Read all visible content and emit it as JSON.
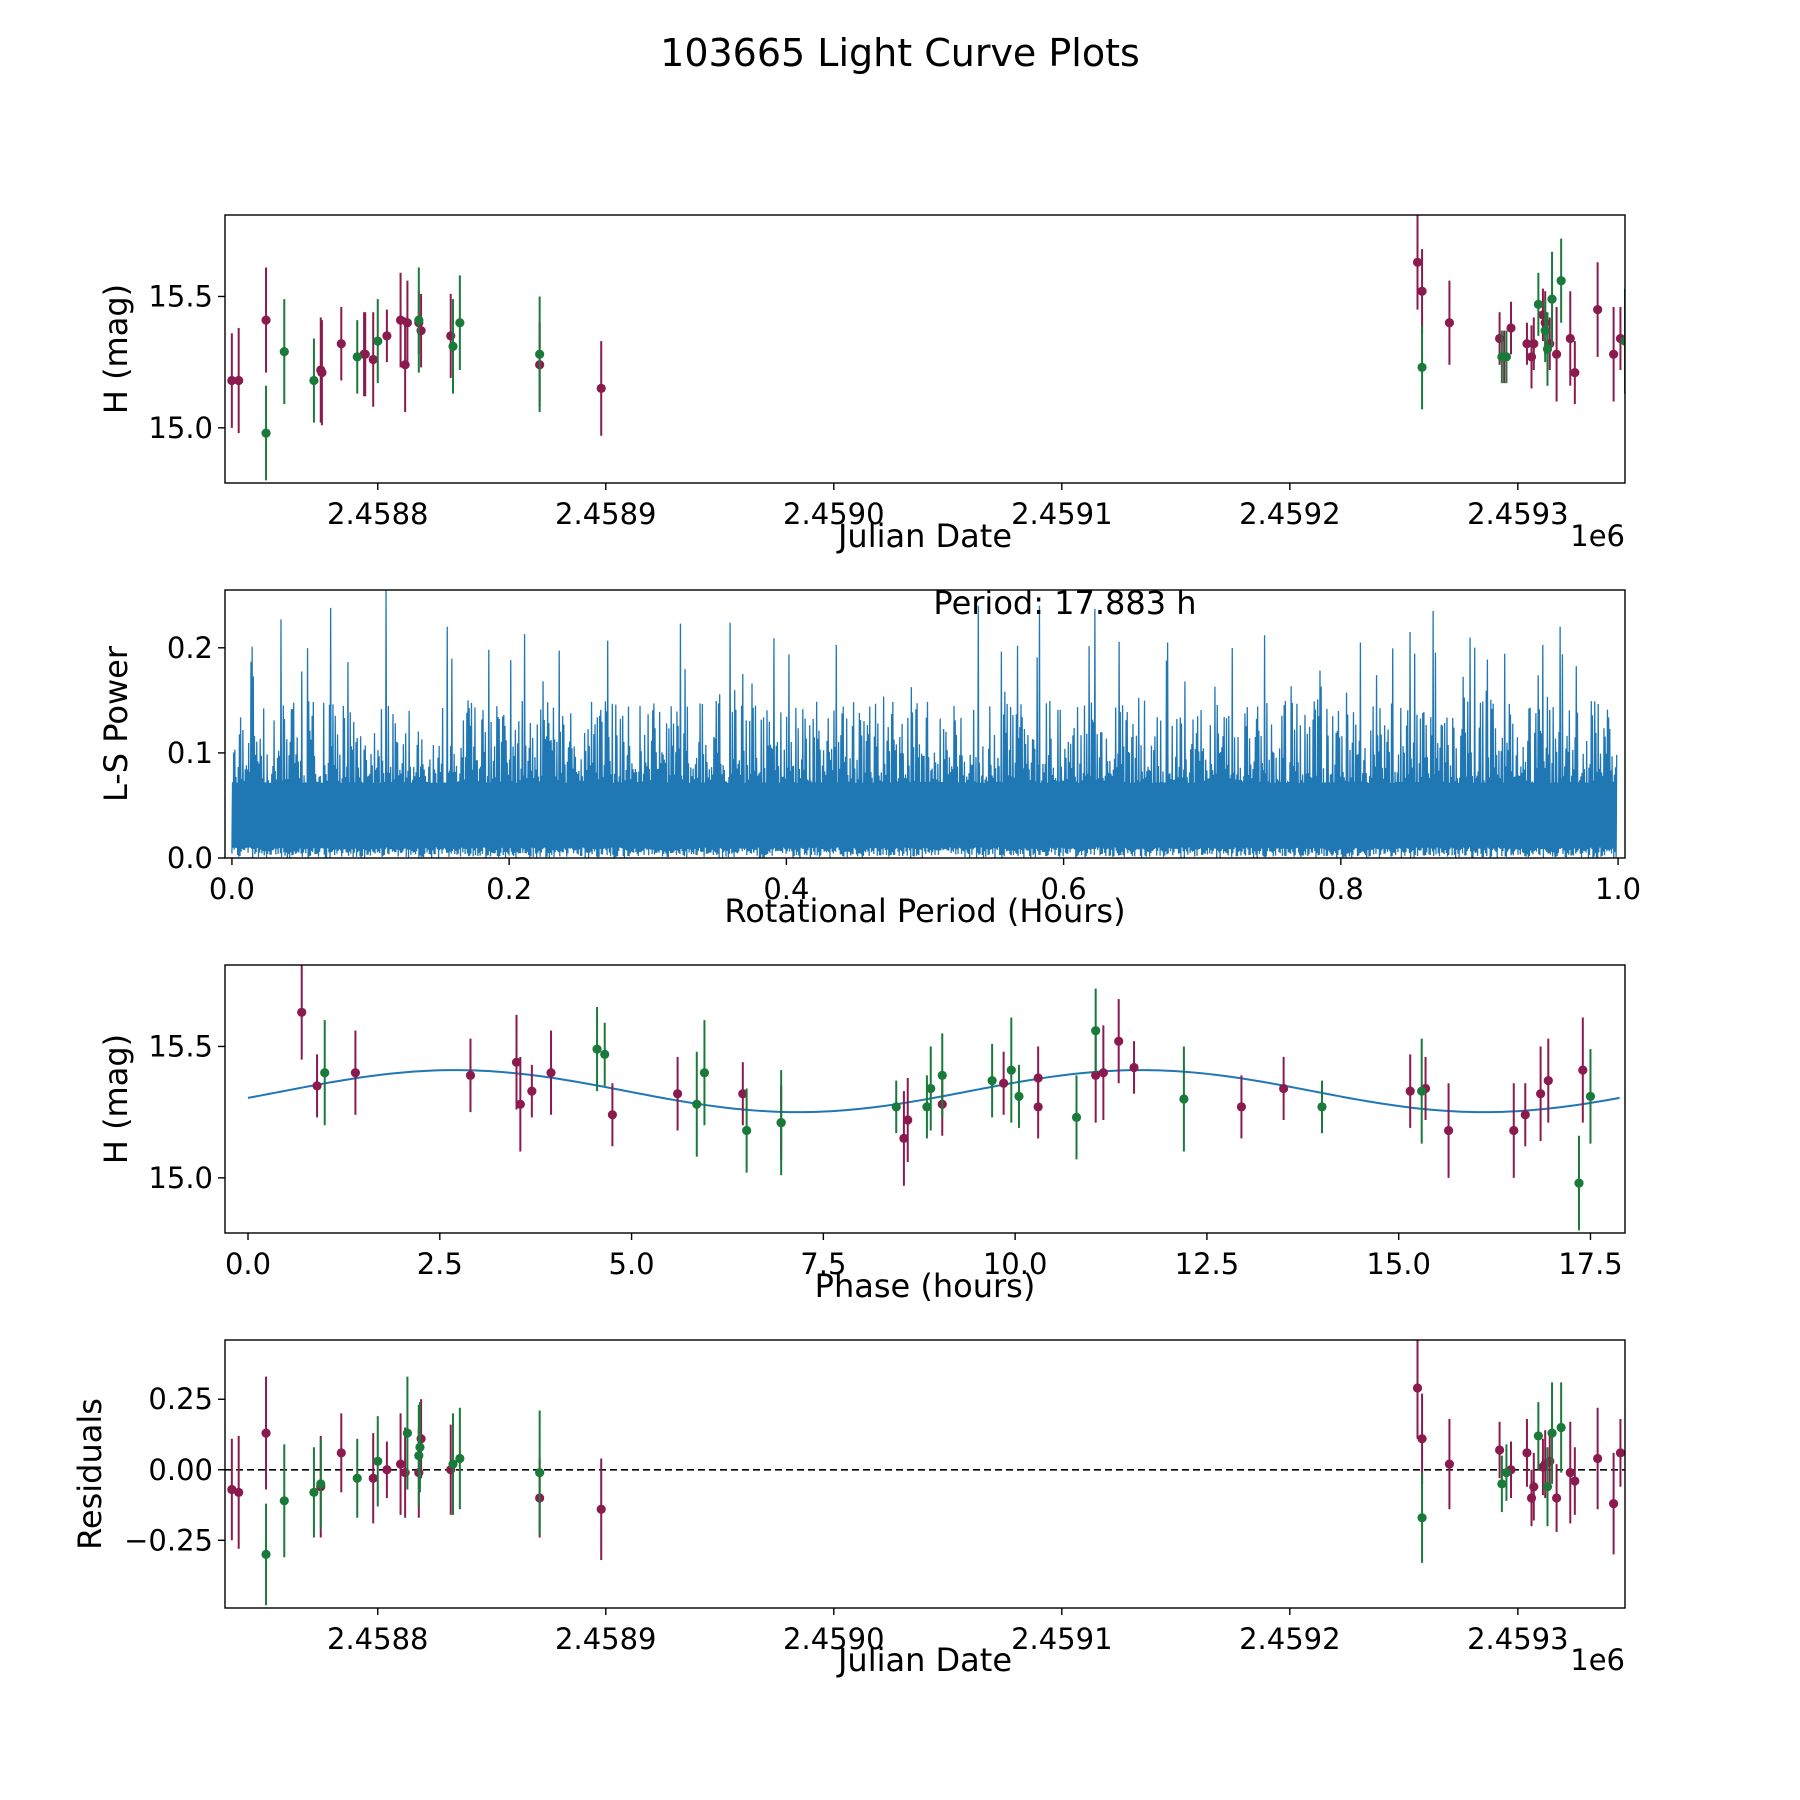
{
  "title": "103665 Light Curve Plots",
  "colors": {
    "red": "#8b1a4f",
    "green": "#1a7a3a",
    "line": "#1f77b4",
    "axis": "#000000"
  },
  "chart_data": [
    {
      "type": "scatter",
      "name": "lightcurve",
      "xlabel": "Julian Date",
      "ylabel": "H (mag)",
      "offset_label": "1e6",
      "xlim": [
        2458733,
        2459347
      ],
      "ylim": [
        14.79,
        15.81
      ],
      "xticks": [
        2458800,
        2458900,
        2459000,
        2459100,
        2459200,
        2459300
      ],
      "xtick_labels": [
        "2.4588",
        "2.4589",
        "2.4590",
        "2.4591",
        "2.4592",
        "2.4593"
      ],
      "yticks": [
        15.0,
        15.5
      ],
      "ytick_labels": [
        "15.0",
        "15.5"
      ],
      "series": [
        {
          "name": "red",
          "color": "red",
          "points": [
            [
              2458736,
              15.18,
              0.18
            ],
            [
              2458739,
              15.18,
              0.2
            ],
            [
              2458751,
              15.41,
              0.2
            ],
            [
              2458775,
              15.22,
              0.2
            ],
            [
              2458775.5,
              15.21,
              0.2
            ],
            [
              2458784,
              15.32,
              0.14
            ],
            [
              2458794,
              15.28,
              0.16
            ],
            [
              2458798,
              15.26,
              0.18
            ],
            [
              2458794.5,
              15.28,
              0.16
            ],
            [
              2458804,
              15.35,
              0.1
            ],
            [
              2458810,
              15.41,
              0.18
            ],
            [
              2458812,
              15.24,
              0.18
            ],
            [
              2458813,
              15.4,
              0.16
            ],
            [
              2458818,
              15.4,
              0.12
            ],
            [
              2458819,
              15.37,
              0.14
            ],
            [
              2458832,
              15.35,
              0.16
            ],
            [
              2458871,
              15.24,
              0.16
            ],
            [
              2458898,
              15.15,
              0.18
            ],
            [
              2459256,
              15.63,
              0.18
            ],
            [
              2459258,
              15.52,
              0.16
            ],
            [
              2459270,
              15.4,
              0.16
            ],
            [
              2459292,
              15.34,
              0.1
            ],
            [
              2459294,
              15.27,
              0.1
            ],
            [
              2459297,
              15.38,
              0.1
            ],
            [
              2459304,
              15.32,
              0.08
            ],
            [
              2459306,
              15.27,
              0.12
            ],
            [
              2459307,
              15.32,
              0.1
            ],
            [
              2459311,
              15.43,
              0.1
            ],
            [
              2459312,
              15.4,
              0.12
            ],
            [
              2459314,
              15.32,
              0.1
            ],
            [
              2459317,
              15.28,
              0.18
            ],
            [
              2459323,
              15.34,
              0.18
            ],
            [
              2459325,
              15.21,
              0.12
            ],
            [
              2459335,
              15.45,
              0.18
            ],
            [
              2459342,
              15.28,
              0.18
            ],
            [
              2459345,
              15.34,
              0.12
            ]
          ]
        },
        {
          "name": "green",
          "color": "green",
          "points": [
            [
              2458751,
              14.98,
              0.18
            ],
            [
              2458759,
              15.29,
              0.2
            ],
            [
              2458772,
              15.18,
              0.16
            ],
            [
              2458791,
              15.27,
              0.14
            ],
            [
              2458800,
              15.33,
              0.16
            ],
            [
              2458818,
              15.41,
              0.2
            ],
            [
              2458833,
              15.31,
              0.18
            ],
            [
              2458836,
              15.4,
              0.18
            ],
            [
              2458871,
              15.28,
              0.22
            ],
            [
              2459258,
              15.23,
              0.16
            ],
            [
              2459293,
              15.27,
              0.1
            ],
            [
              2459295,
              15.27,
              0.1
            ],
            [
              2459309,
              15.47,
              0.12
            ],
            [
              2459312,
              15.37,
              0.12
            ],
            [
              2459313,
              15.3,
              0.14
            ],
            [
              2459315,
              15.49,
              0.18
            ],
            [
              2459319,
              15.56,
              0.16
            ],
            [
              2459347,
              15.33,
              0.2
            ]
          ]
        }
      ]
    },
    {
      "type": "line",
      "name": "periodogram",
      "xlabel": "Rotational Period (Hours)",
      "ylabel": "L-S Power",
      "annotation": "Period: 17.883 h",
      "xlim": [
        -0.005,
        1.005
      ],
      "ylim": [
        0,
        0.255
      ],
      "xticks": [
        0.0,
        0.2,
        0.4,
        0.6,
        0.8,
        1.0
      ],
      "xtick_labels": [
        "0.0",
        "0.2",
        "0.4",
        "0.6",
        "0.8",
        "1.0"
      ],
      "yticks": [
        0.0,
        0.1,
        0.2
      ],
      "ytick_labels": [
        "0.0",
        "0.1",
        "0.2"
      ],
      "x_range": [
        0.0,
        0.999
      ],
      "n_samples": 2400,
      "typical_power": 0.13,
      "max_power": 0.255,
      "noise_seed": 103665,
      "peaks": [
        [
          0.035,
          0.227
        ],
        [
          0.071,
          0.238
        ],
        [
          0.111,
          0.255
        ],
        [
          0.155,
          0.22
        ],
        [
          0.211,
          0.213
        ],
        [
          0.323,
          0.223
        ],
        [
          0.359,
          0.224
        ],
        [
          0.538,
          0.24
        ],
        [
          0.582,
          0.24
        ],
        [
          0.622,
          0.237
        ],
        [
          0.675,
          0.205
        ],
        [
          0.745,
          0.212
        ],
        [
          0.85,
          0.215
        ],
        [
          0.866,
          0.235
        ],
        [
          0.958,
          0.22
        ]
      ]
    },
    {
      "type": "scatter",
      "name": "phased",
      "xlabel": "Phase (hours)",
      "ylabel": "H (mag)",
      "xlim": [
        -0.3,
        17.95
      ],
      "ylim": [
        14.79,
        15.81
      ],
      "xticks": [
        0.0,
        2.5,
        5.0,
        7.5,
        10.0,
        12.5,
        15.0,
        17.5
      ],
      "xtick_labels": [
        "0.0",
        "2.5",
        "5.0",
        "7.5",
        "10.0",
        "12.5",
        "15.0",
        "17.5"
      ],
      "yticks": [
        15.0,
        15.5
      ],
      "ytick_labels": [
        "15.0",
        "15.5"
      ],
      "model": {
        "mean": 15.33,
        "amplitude": 0.08,
        "period_hours": 17.883,
        "phase_of_max_hours": 2.7,
        "x_range": [
          0.0,
          17.88
        ]
      },
      "series": [
        {
          "name": "red",
          "color": "red",
          "points": [
            [
              0.7,
              15.63,
              0.18
            ],
            [
              0.9,
              15.35,
              0.12
            ],
            [
              1.4,
              15.4,
              0.16
            ],
            [
              2.9,
              15.39,
              0.14
            ],
            [
              3.5,
              15.44,
              0.18
            ],
            [
              3.55,
              15.28,
              0.18
            ],
            [
              3.7,
              15.33,
              0.1
            ],
            [
              3.95,
              15.4,
              0.16
            ],
            [
              4.75,
              15.24,
              0.12
            ],
            [
              5.6,
              15.32,
              0.14
            ],
            [
              6.45,
              15.32,
              0.12
            ],
            [
              6.95,
              15.21,
              0.14
            ],
            [
              8.55,
              15.15,
              0.18
            ],
            [
              8.6,
              15.22,
              0.16
            ],
            [
              9.05,
              15.28,
              0.12
            ],
            [
              9.85,
              15.36,
              0.12
            ],
            [
              10.3,
              15.27,
              0.12
            ],
            [
              10.3,
              15.38,
              0.12
            ],
            [
              11.05,
              15.39,
              0.18
            ],
            [
              11.15,
              15.4,
              0.18
            ],
            [
              11.35,
              15.52,
              0.16
            ],
            [
              11.55,
              15.42,
              0.1
            ],
            [
              12.95,
              15.27,
              0.12
            ],
            [
              13.5,
              15.34,
              0.12
            ],
            [
              15.15,
              15.33,
              0.14
            ],
            [
              15.35,
              15.34,
              0.12
            ],
            [
              15.65,
              15.18,
              0.18
            ],
            [
              16.5,
              15.18,
              0.18
            ],
            [
              16.65,
              15.24,
              0.12
            ],
            [
              16.85,
              15.32,
              0.18
            ],
            [
              16.95,
              15.37,
              0.16
            ],
            [
              17.4,
              15.41,
              0.2
            ]
          ]
        },
        {
          "name": "green",
          "color": "green",
          "points": [
            [
              1.0,
              15.4,
              0.2
            ],
            [
              4.55,
              15.49,
              0.16
            ],
            [
              4.65,
              15.47,
              0.12
            ],
            [
              5.85,
              15.28,
              0.2
            ],
            [
              5.95,
              15.4,
              0.2
            ],
            [
              6.5,
              15.18,
              0.16
            ],
            [
              6.95,
              15.21,
              0.2
            ],
            [
              8.45,
              15.27,
              0.1
            ],
            [
              8.85,
              15.27,
              0.12
            ],
            [
              8.9,
              15.34,
              0.16
            ],
            [
              9.05,
              15.39,
              0.16
            ],
            [
              9.7,
              15.37,
              0.14
            ],
            [
              9.95,
              15.41,
              0.2
            ],
            [
              10.05,
              15.31,
              0.12
            ],
            [
              10.8,
              15.23,
              0.16
            ],
            [
              11.05,
              15.56,
              0.16
            ],
            [
              12.2,
              15.3,
              0.2
            ],
            [
              14.0,
              15.27,
              0.1
            ],
            [
              15.3,
              15.33,
              0.2
            ],
            [
              17.35,
              14.98,
              0.18
            ],
            [
              17.5,
              15.31,
              0.18
            ]
          ]
        }
      ]
    },
    {
      "type": "scatter",
      "name": "residuals",
      "xlabel": "Julian Date",
      "ylabel": "Residuals",
      "offset_label": "1e6",
      "xlim": [
        2458733,
        2459347
      ],
      "ylim": [
        -0.49,
        0.46
      ],
      "xticks": [
        2458800,
        2458900,
        2459000,
        2459100,
        2459200,
        2459300
      ],
      "xtick_labels": [
        "2.4588",
        "2.4589",
        "2.4590",
        "2.4591",
        "2.4592",
        "2.4593"
      ],
      "yticks": [
        -0.25,
        0.0,
        0.25
      ],
      "ytick_labels": [
        "−0.25",
        "0.00",
        "0.25"
      ],
      "zero_line": 0,
      "series": [
        {
          "name": "red",
          "color": "red",
          "points": [
            [
              2458736,
              -0.07,
              0.18
            ],
            [
              2458739,
              -0.08,
              0.2
            ],
            [
              2458751,
              0.13,
              0.2
            ],
            [
              2458775,
              -0.06,
              0.18
            ],
            [
              2458784,
              0.06,
              0.14
            ],
            [
              2458798,
              -0.03,
              0.16
            ],
            [
              2458804,
              0.0,
              0.1
            ],
            [
              2458810,
              0.02,
              0.18
            ],
            [
              2458812,
              -0.01,
              0.16
            ],
            [
              2458819,
              0.11,
              0.14
            ],
            [
              2458818,
              -0.01,
              0.16
            ],
            [
              2458832,
              0.0,
              0.16
            ],
            [
              2458871,
              -0.1,
              0.14
            ],
            [
              2458898,
              -0.14,
              0.18
            ],
            [
              2459256,
              0.29,
              0.18
            ],
            [
              2459258,
              0.11,
              0.16
            ],
            [
              2459270,
              0.02,
              0.16
            ],
            [
              2459292,
              0.07,
              0.1
            ],
            [
              2459297,
              0.0,
              0.1
            ],
            [
              2459304,
              0.06,
              0.12
            ],
            [
              2459306,
              -0.1,
              0.1
            ],
            [
              2459307,
              -0.06,
              0.12
            ],
            [
              2459311,
              0.01,
              0.1
            ],
            [
              2459312,
              0.02,
              0.12
            ],
            [
              2459314,
              0.03,
              0.1
            ],
            [
              2459317,
              -0.1,
              0.12
            ],
            [
              2459323,
              -0.01,
              0.18
            ],
            [
              2459325,
              -0.04,
              0.12
            ],
            [
              2459335,
              0.04,
              0.18
            ],
            [
              2459342,
              -0.12,
              0.18
            ],
            [
              2459345,
              0.06,
              0.12
            ]
          ]
        },
        {
          "name": "green",
          "color": "green",
          "points": [
            [
              2458751,
              -0.3,
              0.18
            ],
            [
              2458759,
              -0.11,
              0.2
            ],
            [
              2458772,
              -0.08,
              0.16
            ],
            [
              2458775,
              -0.05,
              0.16
            ],
            [
              2458791,
              -0.03,
              0.14
            ],
            [
              2458800,
              0.03,
              0.16
            ],
            [
              2458813,
              0.13,
              0.2
            ],
            [
              2458818,
              0.05,
              0.18
            ],
            [
              2458818.5,
              0.08,
              0.16
            ],
            [
              2458833,
              0.02,
              0.18
            ],
            [
              2458836,
              0.04,
              0.18
            ],
            [
              2458871,
              -0.01,
              0.22
            ],
            [
              2459258,
              -0.17,
              0.16
            ],
            [
              2459293,
              -0.05,
              0.1
            ],
            [
              2459295,
              -0.01,
              0.1
            ],
            [
              2459309,
              0.12,
              0.12
            ],
            [
              2459313,
              -0.06,
              0.14
            ],
            [
              2459315,
              0.13,
              0.18
            ],
            [
              2459319,
              0.15,
              0.16
            ]
          ]
        }
      ]
    }
  ]
}
